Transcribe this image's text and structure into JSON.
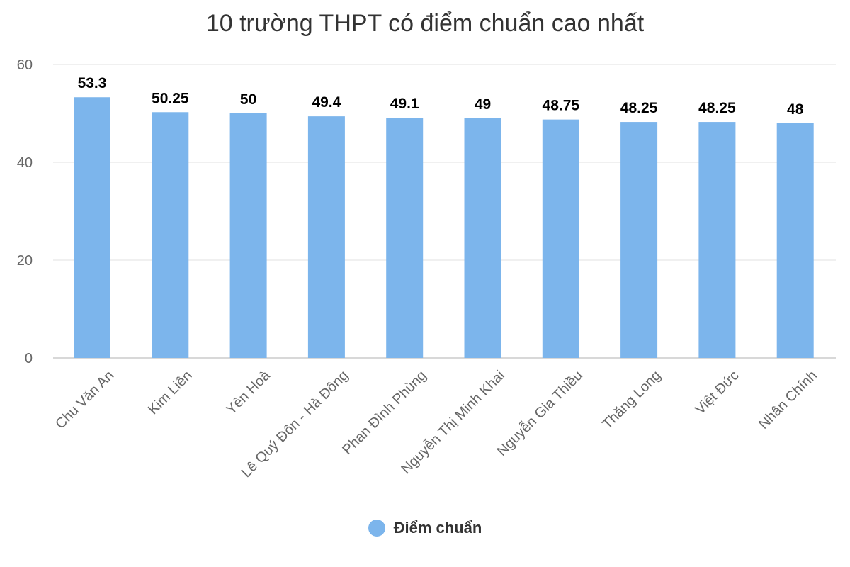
{
  "chart_data": {
    "type": "bar",
    "title": "10 trường THPT có điểm chuẩn cao nhất",
    "categories": [
      "Chu Văn An",
      "Kim Liên",
      "Yên Hoà",
      "Lê Quý Đôn - Hà Đông",
      "Phan Đình Phùng",
      "Nguyễn Thị Minh Khai",
      "Nguyễn Gia Thiều",
      "Thăng Long",
      "Việt Đức",
      "Nhân Chính"
    ],
    "series": [
      {
        "name": "Điểm chuẩn",
        "values": [
          53.3,
          50.25,
          50,
          49.4,
          49.1,
          49,
          48.75,
          48.25,
          48.25,
          48
        ],
        "labels": [
          "53.3",
          "50.25",
          "50",
          "49.4",
          "49.1",
          "49",
          "48.75",
          "48.25",
          "48.25",
          "48"
        ]
      }
    ],
    "ylim": [
      0,
      60
    ],
    "yticks": [
      "0",
      "20",
      "40",
      "60"
    ],
    "grid": true,
    "legend": "bottom-center",
    "colors": {
      "bar": "#7cb5ec",
      "grid": "#e6e6e6",
      "axis_line": "#cccccc",
      "tick_text": "#666666",
      "data_label": "#000000"
    }
  }
}
